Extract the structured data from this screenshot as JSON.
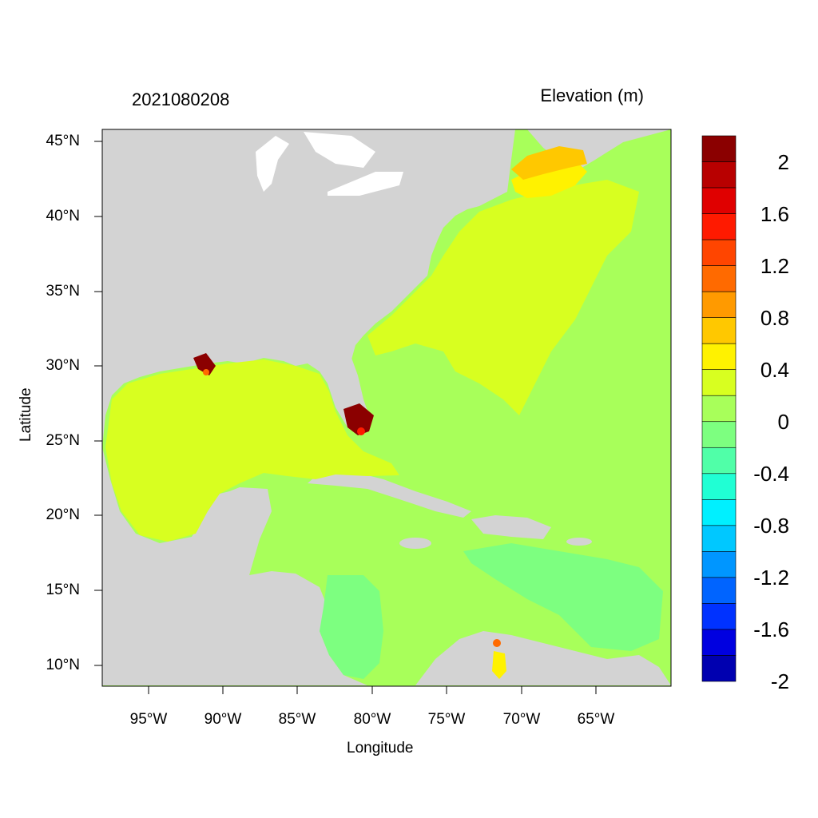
{
  "title": {
    "left": "2021080208",
    "right": "Elevation (m)"
  },
  "axes": {
    "xlabel": "Longitude",
    "ylabel": "Latitude",
    "xticks": [
      "95°W",
      "90°W",
      "85°W",
      "80°W",
      "75°W",
      "70°W",
      "65°W"
    ],
    "yticks": [
      "45°N",
      "40°N",
      "35°N",
      "30°N",
      "25°N",
      "20°N",
      "15°N",
      "10°N"
    ]
  },
  "colorbar": {
    "labels": [
      "2",
      "1.6",
      "1.2",
      "0.8",
      "0.4",
      "0",
      "-0.4",
      "-0.8",
      "-1.2",
      "-1.6",
      "-2"
    ],
    "colors": [
      "#8b0000",
      "#b80000",
      "#e00000",
      "#ff1a00",
      "#ff4500",
      "#ff6a00",
      "#ff9a00",
      "#ffc800",
      "#fff200",
      "#d8ff20",
      "#a8ff5a",
      "#7dff80",
      "#50ffa8",
      "#20ffd4",
      "#00f0ff",
      "#00c8ff",
      "#0096ff",
      "#0064ff",
      "#0032ff",
      "#0000e0",
      "#0000b0"
    ]
  },
  "colors": {
    "land": "#d3d3d3",
    "gulf": "#d8ff20",
    "ocean": "#a8ff5a",
    "positive_high": "#fff200",
    "orange": "#ffc800",
    "caribbean_low": "#7dff80",
    "surge": "#8b0000"
  }
}
